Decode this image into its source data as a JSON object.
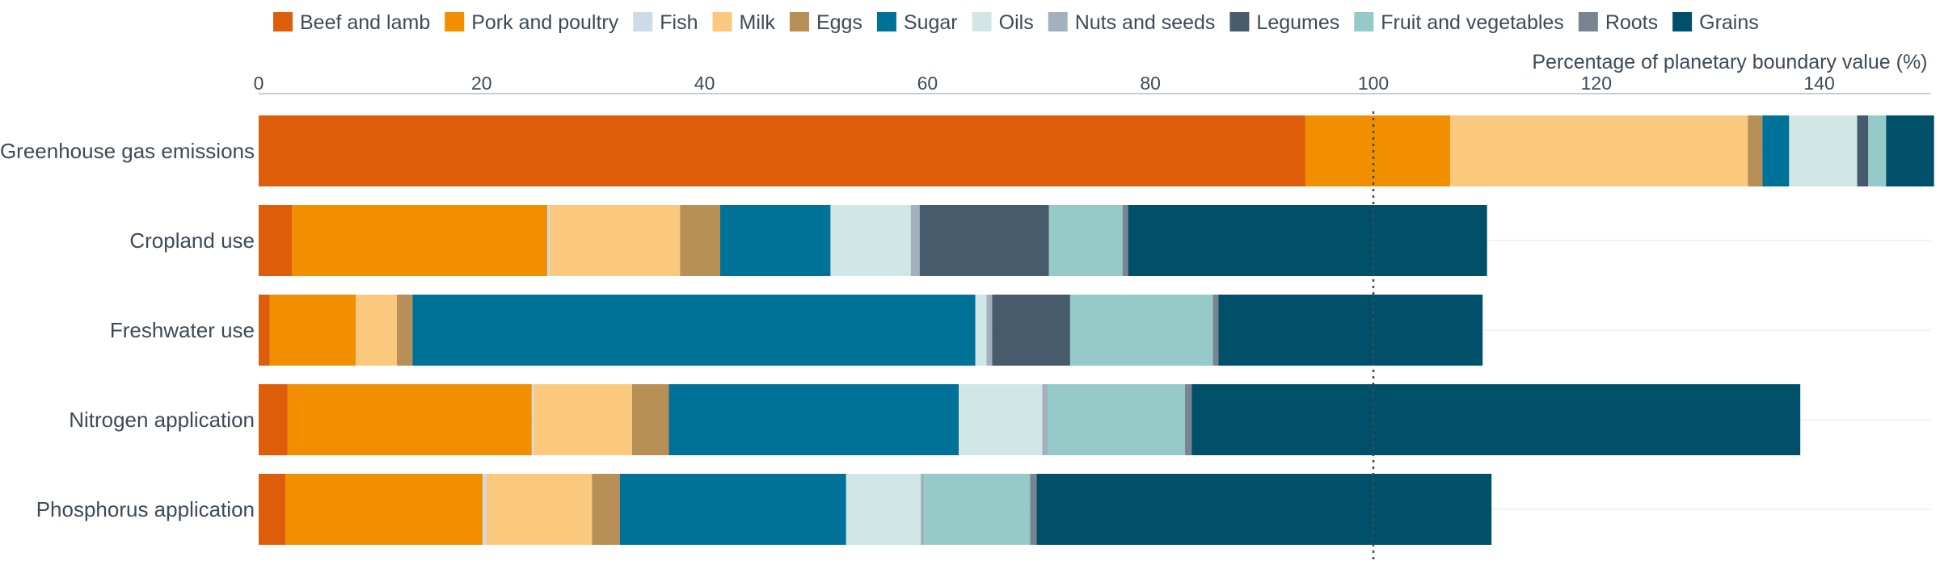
{
  "chart_data": {
    "type": "bar",
    "orientation": "horizontal",
    "stacked": true,
    "xlabel": "Percentage of planetary boundary value (%)",
    "xlim": [
      0,
      150
    ],
    "xticks": [
      0,
      20,
      40,
      60,
      80,
      100,
      120,
      140
    ],
    "xtick_labels": [
      "0",
      "20",
      "40",
      "60",
      "80",
      "100",
      "120",
      "140"
    ],
    "reference_line": {
      "x": 100,
      "style": "dotted"
    },
    "legend_position": "top",
    "categories": [
      "Greenhouse gas emissions",
      "Cropland use",
      "Freshwater use",
      "Nitrogen application",
      "Phosphorus application"
    ],
    "series": [
      {
        "name": "Beef and lamb",
        "color": "#de5d0b",
        "values": [
          93.9,
          3.0,
          1.0,
          2.6,
          2.4
        ]
      },
      {
        "name": "Pork and poultry",
        "color": "#f28f00",
        "values": [
          13.0,
          22.9,
          7.7,
          21.9,
          17.7
        ]
      },
      {
        "name": "Fish",
        "color": "#cddbe8",
        "values": [
          0.0,
          0.2,
          0.0,
          0.2,
          0.3
        ]
      },
      {
        "name": "Milk",
        "color": "#fbc97d",
        "values": [
          26.7,
          11.7,
          3.7,
          8.8,
          9.5
        ]
      },
      {
        "name": "Eggs",
        "color": "#b78f57",
        "values": [
          1.3,
          3.6,
          1.4,
          3.3,
          2.5
        ]
      },
      {
        "name": "Sugar",
        "color": "#007297",
        "values": [
          2.4,
          9.9,
          50.5,
          26.0,
          20.3
        ]
      },
      {
        "name": "Oils",
        "color": "#d1e7e5",
        "values": [
          6.1,
          7.2,
          1.0,
          7.5,
          6.7
        ]
      },
      {
        "name": "Nuts and seeds",
        "color": "#a3b0bd",
        "values": [
          0.0,
          0.8,
          0.5,
          0.5,
          0.3
        ]
      },
      {
        "name": "Legumes",
        "color": "#475b6d",
        "values": [
          1.0,
          11.6,
          7.0,
          0.0,
          0.0
        ]
      },
      {
        "name": "Fruit and vegetables",
        "color": "#95cac8",
        "values": [
          1.6,
          6.6,
          12.8,
          12.3,
          9.5
        ]
      },
      {
        "name": "Roots",
        "color": "#7a8491",
        "values": [
          0.0,
          0.5,
          0.5,
          0.6,
          0.6
        ]
      },
      {
        "name": "Grains",
        "color": "#005069",
        "values": [
          4.3,
          32.2,
          23.7,
          54.6,
          40.8
        ]
      }
    ]
  }
}
